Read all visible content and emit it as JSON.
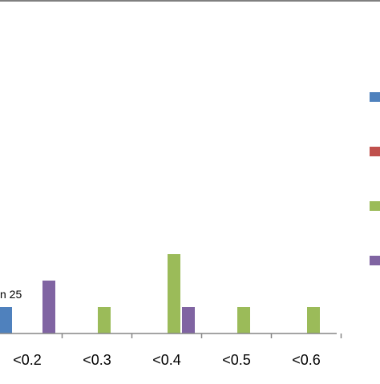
{
  "chart_data": {
    "type": "bar",
    "categories": [
      "<0.2",
      "<0.3",
      "<0.4",
      "<0.5",
      "<0.6"
    ],
    "series": [
      {
        "color": "#4f81bd",
        "values": [
          1,
          0,
          0,
          0,
          0
        ]
      },
      {
        "color": "#c0504d",
        "values": [
          0,
          0,
          0,
          0,
          0
        ]
      },
      {
        "color": "#9bbb59",
        "values": [
          0,
          1,
          3,
          1,
          1
        ]
      },
      {
        "color": "#8064a2",
        "values": [
          2,
          0,
          1,
          0,
          0
        ]
      }
    ],
    "annotations": [
      "n 25"
    ],
    "grid": false
  }
}
